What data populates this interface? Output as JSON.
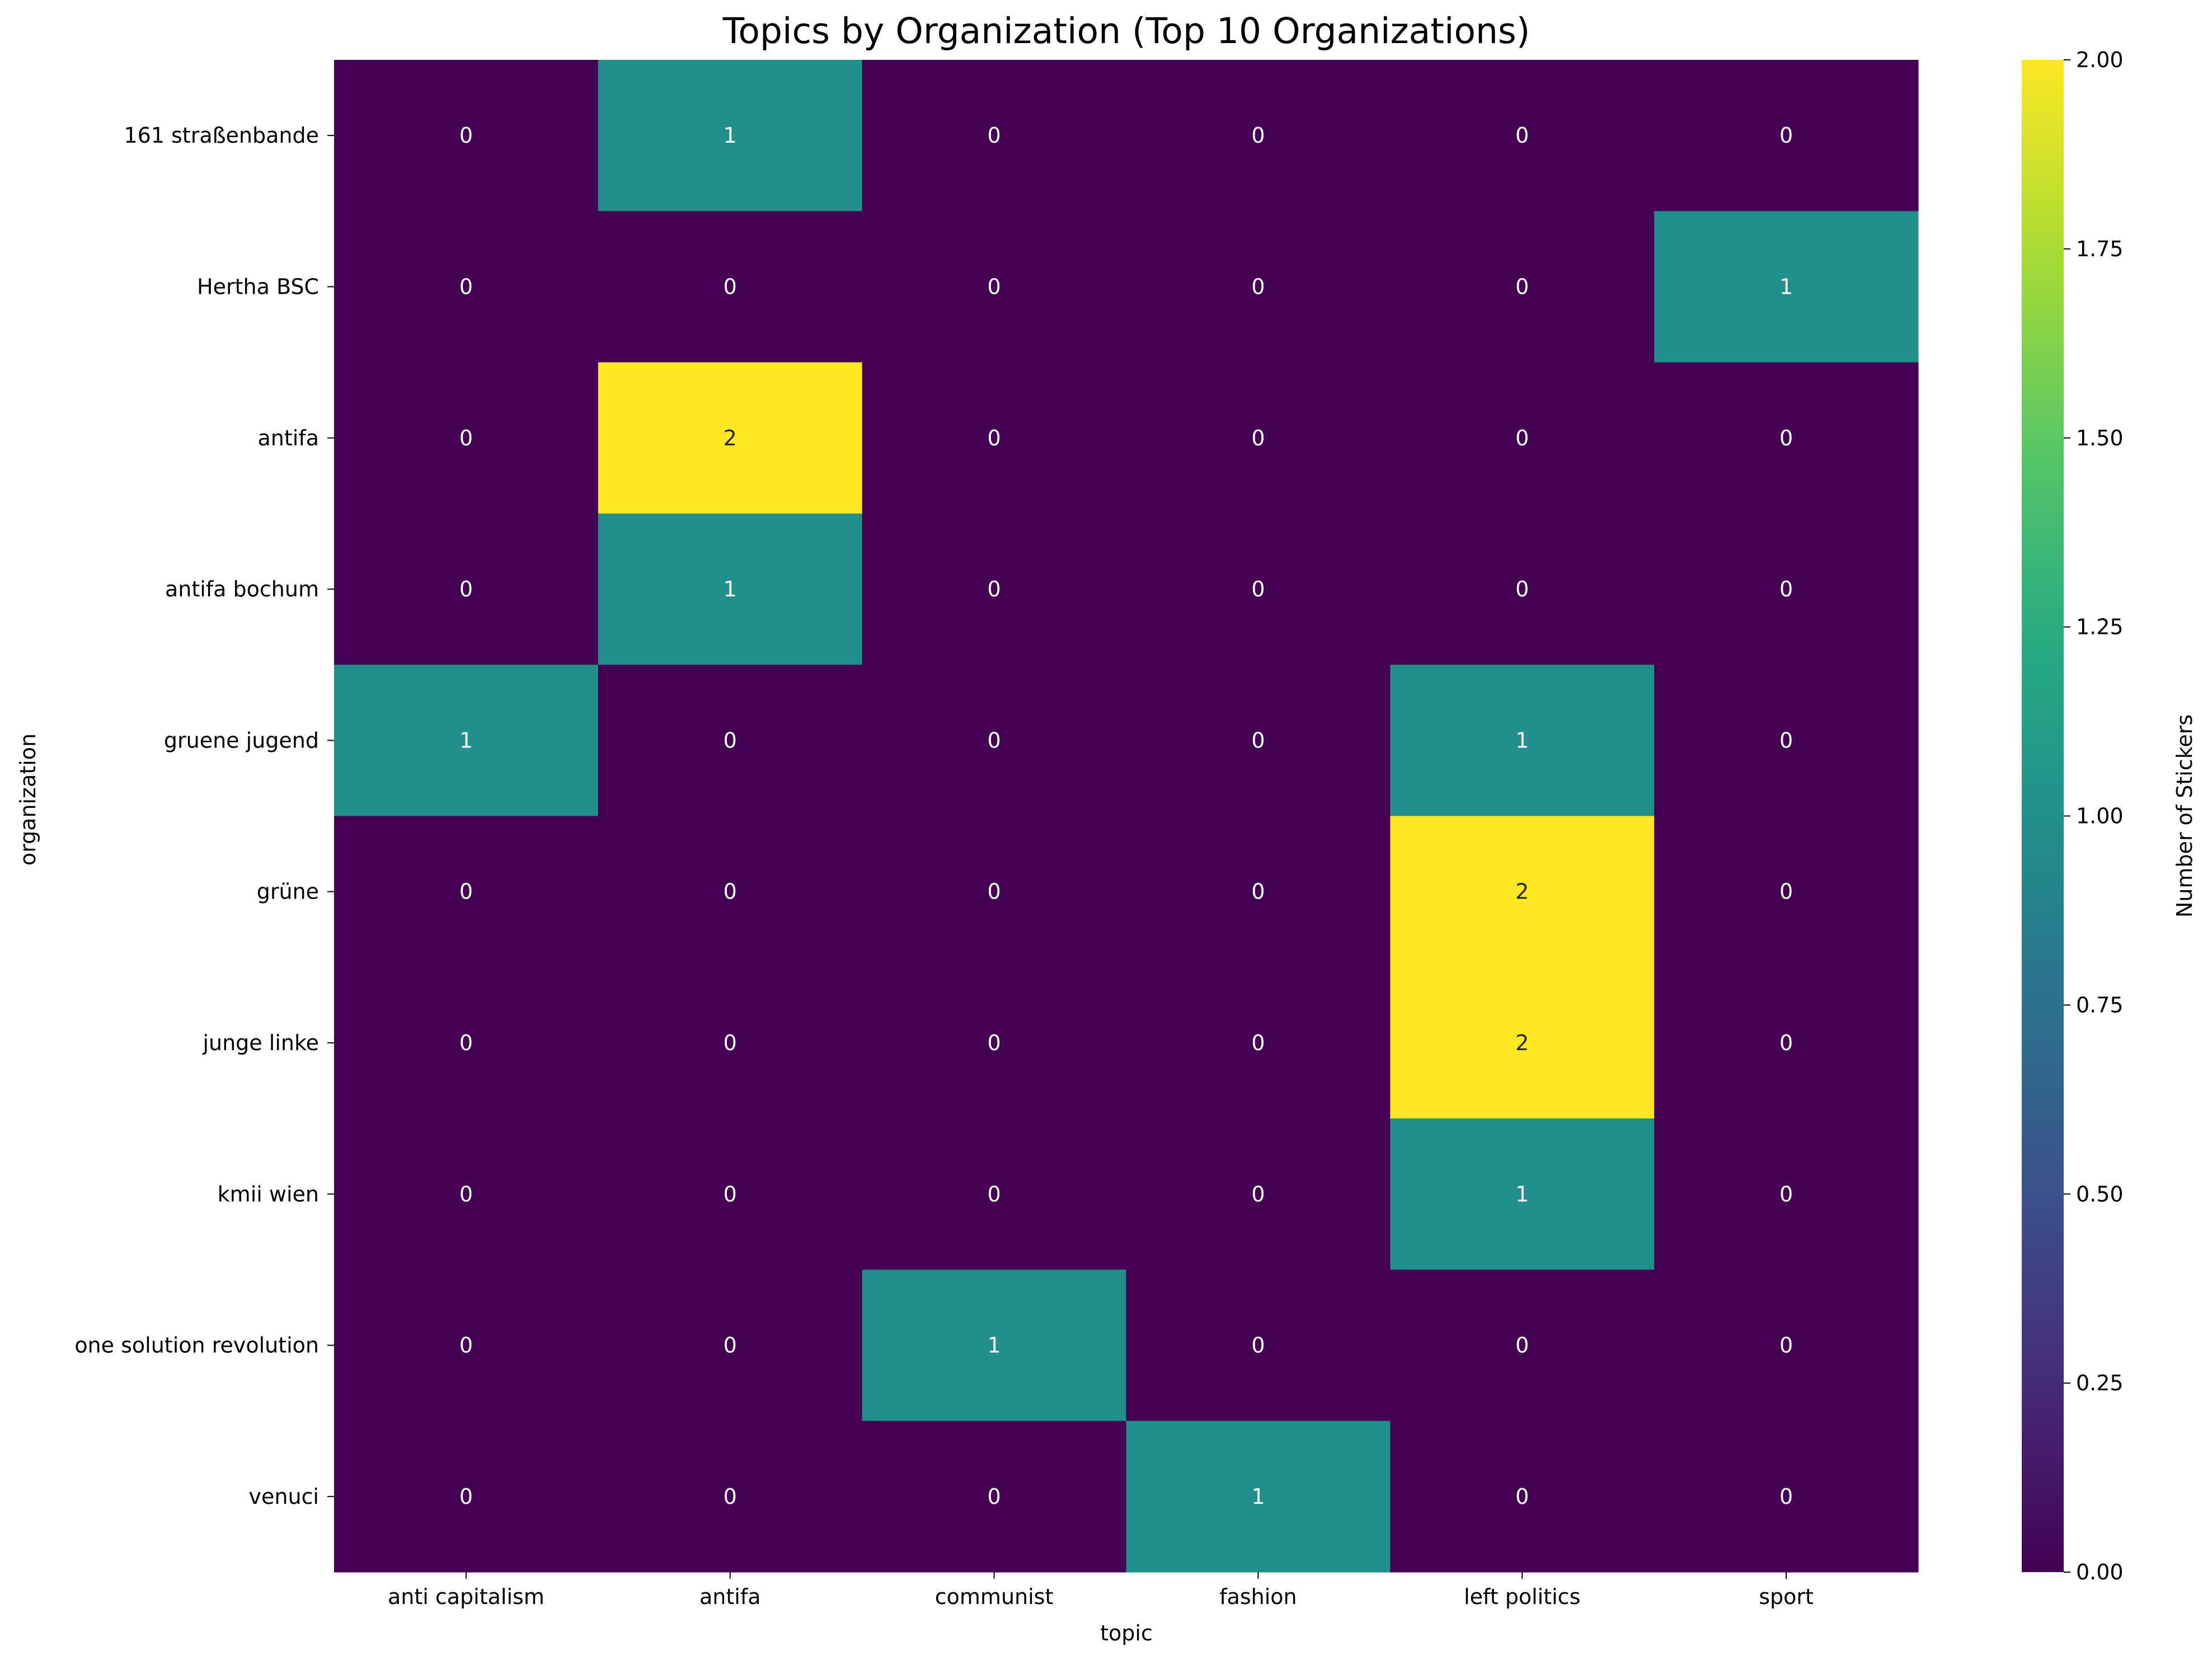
{
  "chart_data": {
    "type": "heatmap",
    "title": "Topics by Organization (Top 10 Organizations)",
    "xlabel": "topic",
    "ylabel": "organization",
    "x_categories": [
      "anti capitalism",
      "antifa",
      "communist",
      "fashion",
      "left politics",
      "sport"
    ],
    "y_categories": [
      "161 straßenbande",
      "Hertha BSC",
      "antifa",
      "antifa bochum",
      "gruene jugend",
      "grüne",
      "junge linke",
      "kmii wien",
      "one solution revolution",
      "venuci"
    ],
    "values": [
      [
        0,
        1,
        0,
        0,
        0,
        0
      ],
      [
        0,
        0,
        0,
        0,
        0,
        1
      ],
      [
        0,
        2,
        0,
        0,
        0,
        0
      ],
      [
        0,
        1,
        0,
        0,
        0,
        0
      ],
      [
        1,
        0,
        0,
        0,
        1,
        0
      ],
      [
        0,
        0,
        0,
        0,
        2,
        0
      ],
      [
        0,
        0,
        0,
        0,
        2,
        0
      ],
      [
        0,
        0,
        0,
        0,
        1,
        0
      ],
      [
        0,
        0,
        1,
        0,
        0,
        0
      ],
      [
        0,
        0,
        0,
        1,
        0,
        0
      ]
    ],
    "colormap": "viridis",
    "colorbar": {
      "label": "Number of Stickers",
      "range": [
        0,
        2
      ],
      "ticks": [
        "0.00",
        "0.25",
        "0.50",
        "0.75",
        "1.00",
        "1.25",
        "1.50",
        "1.75",
        "2.00"
      ]
    },
    "annotated": true,
    "grid": false
  }
}
